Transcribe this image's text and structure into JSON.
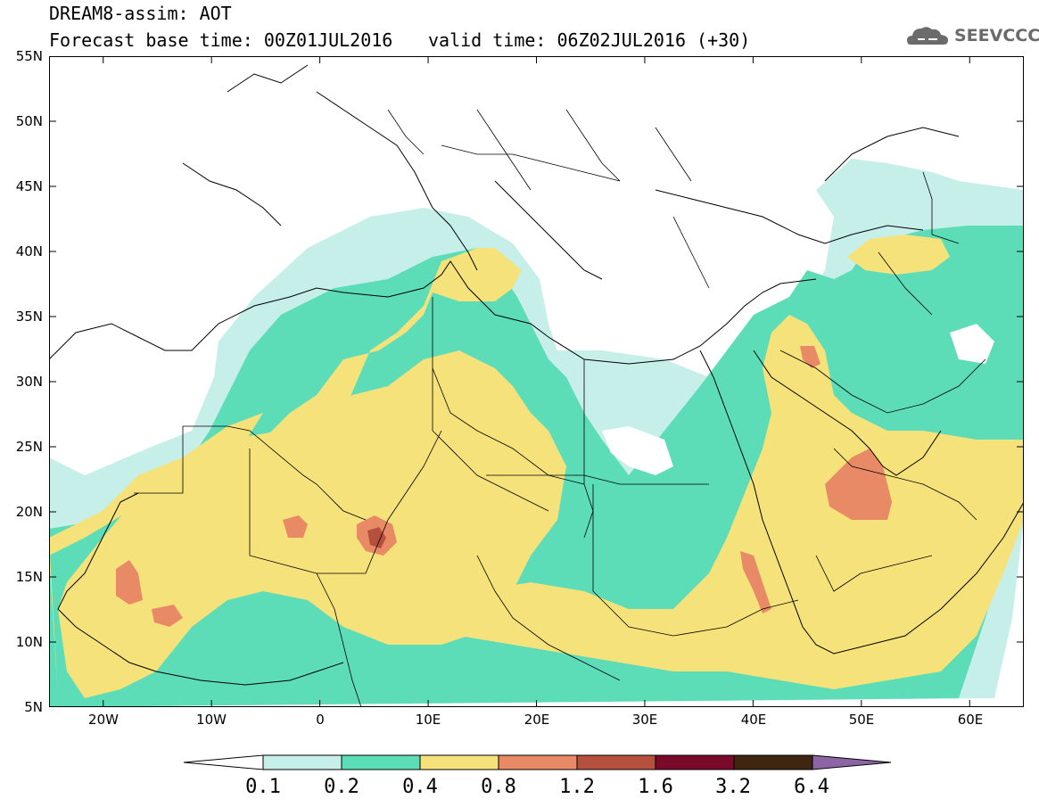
{
  "header": {
    "title_line1": "DREAM8-assim: AOT",
    "title_line2": "Forecast base time: 00Z01JUL2016",
    "valid_time": "valid time: 06Z02JUL2016 (+30)",
    "logo_text": "SEEVCCC"
  },
  "map": {
    "lat_ticks": [
      "55N",
      "50N",
      "45N",
      "40N",
      "35N",
      "30N",
      "25N",
      "20N",
      "15N",
      "10N",
      "5N"
    ],
    "lon_ticks": [
      "20W",
      "10W",
      "0",
      "10E",
      "20E",
      "30E",
      "40E",
      "50E",
      "60E"
    ],
    "lat_range": [
      5,
      55
    ],
    "lon_range": [
      -25,
      65
    ]
  },
  "colorbar": {
    "labels": [
      "0.1",
      "0.2",
      "0.4",
      "0.8",
      "1.2",
      "1.6",
      "3.2",
      "6.4"
    ],
    "colors": [
      "#ffffff",
      "#c6efe9",
      "#5ddcb8",
      "#f5e27a",
      "#e98a66",
      "#b5503e",
      "#7a0a2a",
      "#3e2612",
      "#8d65a4"
    ]
  }
}
